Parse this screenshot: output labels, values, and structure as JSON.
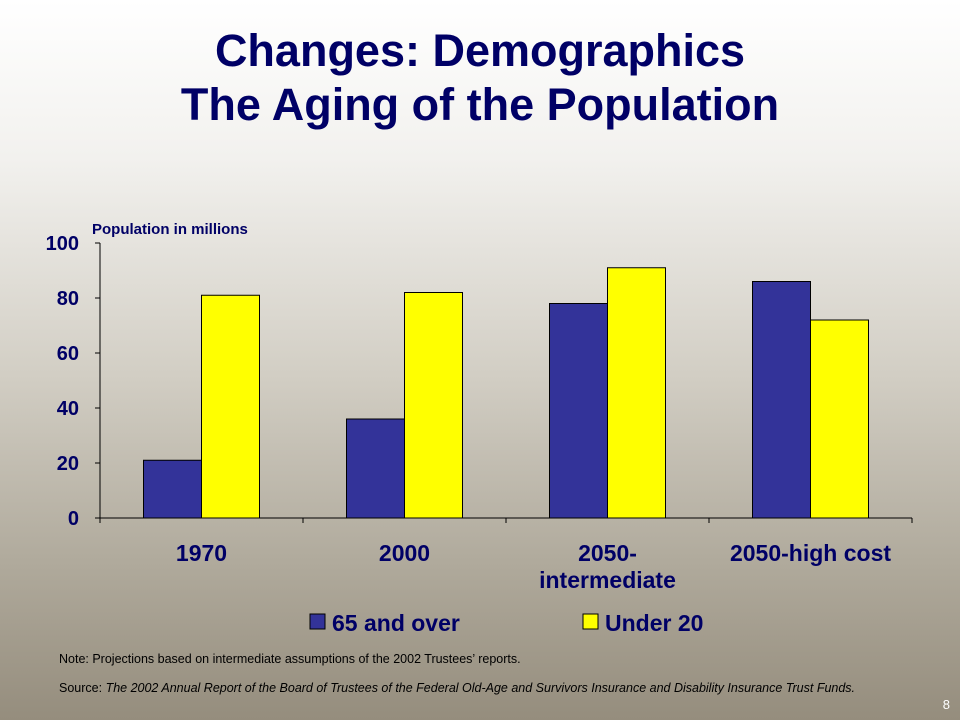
{
  "slide": {
    "title_line1": "Changes:  Demographics",
    "title_line2": "The Aging of the Population",
    "note": "Note:  Projections based on intermediate assumptions of the 2002 Trustees’ reports.",
    "source_prefix": "Source:  ",
    "source_publication": "The 2002 Annual Report of the Board of Trustees of the Federal Old-Age and Survivors Insurance and Disability Insurance Trust Funds.",
    "page_number": "8"
  },
  "chart_data": {
    "type": "bar",
    "ylabel": "Population in millions",
    "categories": [
      [
        "1970"
      ],
      [
        "2000"
      ],
      [
        "2050-",
        "intermediate"
      ],
      [
        "2050-high cost"
      ]
    ],
    "series": [
      {
        "name": "65 and over",
        "color": "#333399",
        "values": [
          21,
          36,
          78,
          86
        ]
      },
      {
        "name": "Under 20",
        "color": "#ffff00",
        "values": [
          81,
          82,
          91,
          72
        ]
      }
    ],
    "ylim": [
      0,
      100
    ],
    "yticks": [
      0,
      20,
      40,
      60,
      80,
      100
    ],
    "grid": false,
    "legend_position": "bottom"
  }
}
